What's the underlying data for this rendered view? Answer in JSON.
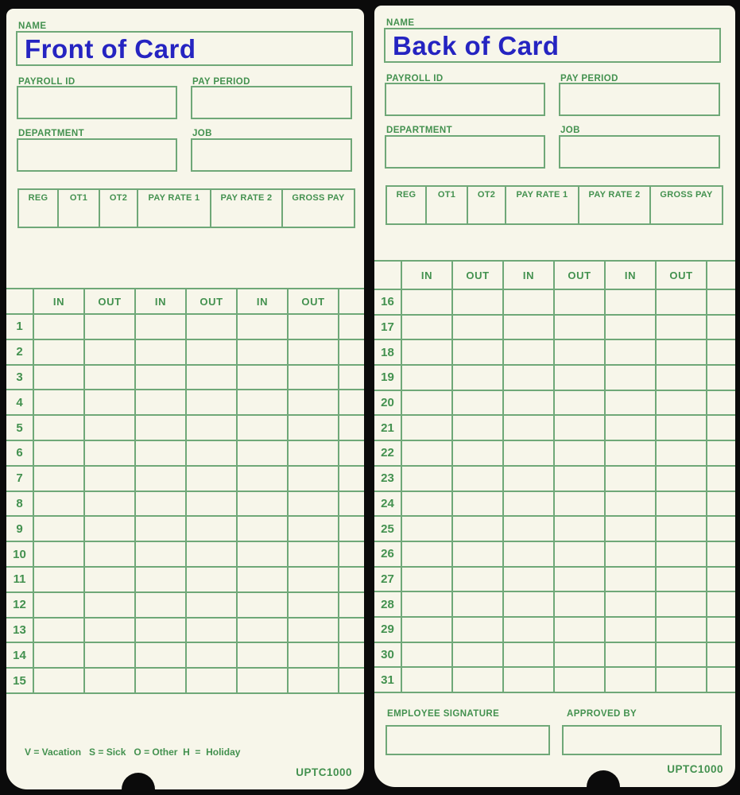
{
  "colors": {
    "background": "#0b0b0b",
    "card": "#f7f6ea",
    "line": "#6fa878",
    "label_green": "#43914f",
    "title_blue": "#2524c1"
  },
  "cards": [
    {
      "side": "front",
      "name_label": "NAME",
      "title": "Front of Card",
      "payroll_id_label": "PAYROLL ID",
      "pay_period_label": "PAY PERIOD",
      "department_label": "DEPARTMENT",
      "job_label": "JOB",
      "pay_summary_headers": [
        "REG",
        "OT1",
        "OT2",
        "PAY RATE 1",
        "PAY RATE 2",
        "GROSS PAY"
      ],
      "time_grid": {
        "column_headers": [
          "IN",
          "OUT",
          "IN",
          "OUT",
          "IN",
          "OUT"
        ],
        "day_rows": [
          "1",
          "2",
          "3",
          "4",
          "5",
          "6",
          "7",
          "8",
          "9",
          "10",
          "11",
          "12",
          "13",
          "14",
          "15"
        ]
      },
      "legend": "V = Vacation   S = Sick   O = Other  H  =  Holiday",
      "model_number": "UPTC1000"
    },
    {
      "side": "back",
      "name_label": "NAME",
      "title": "Back of Card",
      "payroll_id_label": "PAYROLL ID",
      "pay_period_label": "PAY PERIOD",
      "department_label": "DEPARTMENT",
      "job_label": "JOB",
      "pay_summary_headers": [
        "REG",
        "OT1",
        "OT2",
        "PAY RATE 1",
        "PAY RATE 2",
        "GROSS PAY"
      ],
      "time_grid": {
        "column_headers": [
          "IN",
          "OUT",
          "IN",
          "OUT",
          "IN",
          "OUT"
        ],
        "day_rows": [
          "16",
          "17",
          "18",
          "19",
          "20",
          "21",
          "22",
          "23",
          "24",
          "25",
          "26",
          "27",
          "28",
          "29",
          "30",
          "31"
        ]
      },
      "employee_signature_label": "EMPLOYEE SIGNATURE",
      "approved_by_label": "APPROVED BY",
      "model_number": "UPTC1000"
    }
  ]
}
